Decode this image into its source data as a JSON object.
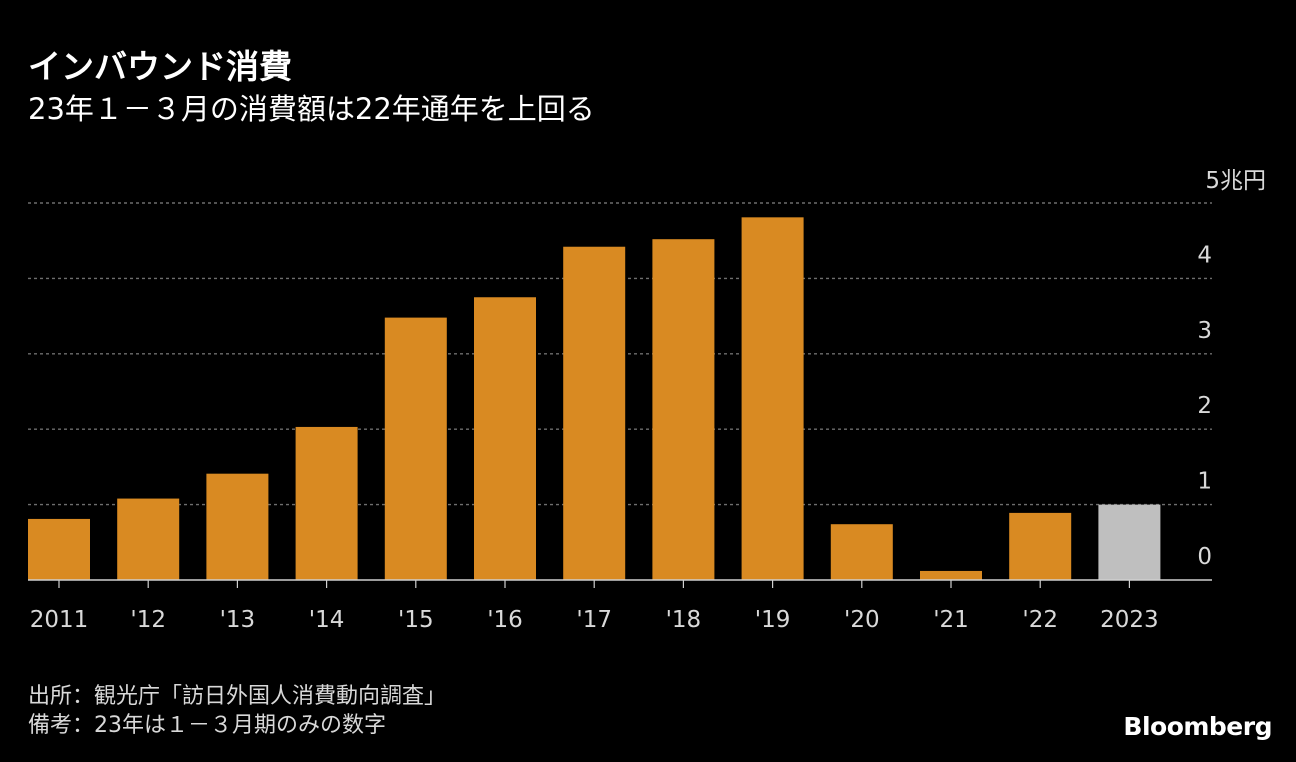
{
  "header": {
    "title": "インバウンド消費",
    "subtitle": "23年１－３月の消費額は22年通年を上回る"
  },
  "chart_data": {
    "type": "bar",
    "title": "インバウンド消費",
    "subtitle": "23年１－３月の消費額は22年通年を上回る",
    "categories": [
      "2011",
      "'12",
      "'13",
      "'14",
      "'15",
      "'16",
      "'17",
      "'18",
      "'19",
      "'20",
      "'21",
      "'22",
      "2023"
    ],
    "values": [
      0.81,
      1.08,
      1.41,
      2.03,
      3.48,
      3.75,
      4.42,
      4.52,
      4.81,
      0.74,
      0.12,
      0.89,
      1.0
    ],
    "highlight_index": 12,
    "unit_label": "5兆円",
    "y_ticks": [
      "0",
      "1",
      "2",
      "3",
      "4"
    ],
    "ylim": [
      0,
      5
    ],
    "xlabel": "",
    "ylabel": "",
    "grid": true,
    "colors": {
      "bar": "#d98a22",
      "highlight": "#bfbfbf",
      "grid": "#6e6e6e",
      "axis": "#d0d0d0",
      "tick_text": "#d9d9d9"
    }
  },
  "footer": {
    "source": "出所：観光庁「訪日外国人消費動向調査」",
    "note": "備考：23年は１－３月期のみの数字",
    "logo": "Bloomberg"
  }
}
